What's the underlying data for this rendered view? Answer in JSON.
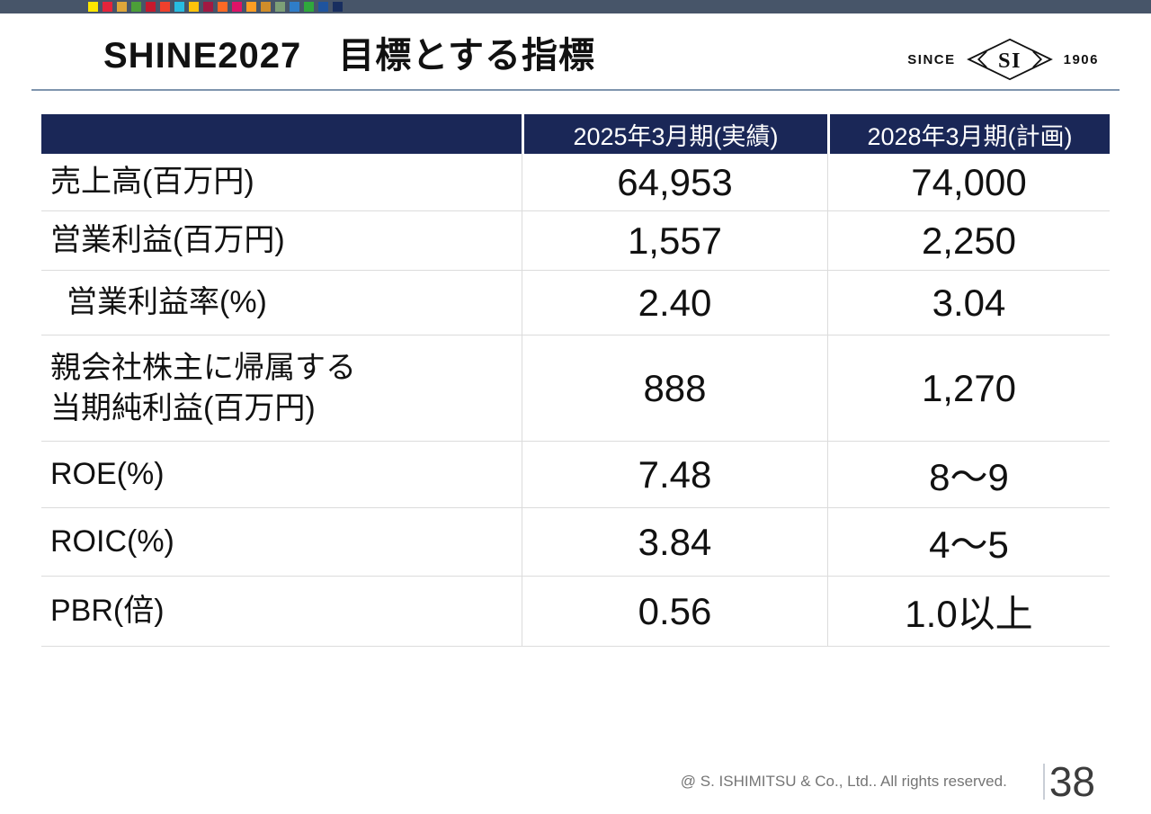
{
  "slide": {
    "title": "SHINE2027　目標とする指標",
    "copyright": "@ S. ISHIMITSU & Co., Ltd.. All rights reserved.",
    "page_number": "38"
  },
  "logo": {
    "since": "SINCE",
    "monogram": "SI",
    "year": "1906"
  },
  "topbar": {
    "bg": "#475569",
    "squares": [
      "#ffe700",
      "#e5243b",
      "#dda63a",
      "#4c9f38",
      "#c5192d",
      "#ef402d",
      "#27bde2",
      "#fcc30b",
      "#a21942",
      "#fd6925",
      "#dd1367",
      "#fd9d24",
      "#cf8d2a",
      "#7d9f77",
      "#2f7dc8",
      "#2fa83c",
      "#1f549e",
      "#182e5f"
    ]
  },
  "colors": {
    "header_bg": "#1a2757",
    "title_rule": "#7f95ae",
    "row_border": "#dcdcdc",
    "footer_text": "#757575"
  },
  "table": {
    "header": {
      "col1": "",
      "col2": "2025年3月期(実績)",
      "col3": "2028年3月期(計画)"
    },
    "rows": [
      {
        "label": "売上高(百万円)",
        "actual": "64,953",
        "plan": "74,000"
      },
      {
        "label": "営業利益(百万円)",
        "actual": "1,557",
        "plan": "2,250"
      },
      {
        "label": "営業利益率(%)",
        "actual": "2.40",
        "plan": "3.04"
      },
      {
        "label": "親会社株主に帰属する\n当期純利益(百万円)",
        "actual": "888",
        "plan": "1,270"
      },
      {
        "label": "ROE(%)",
        "actual": "7.48",
        "plan": "8～9"
      },
      {
        "label": "ROIC(%)",
        "actual": "3.84",
        "plan": "4～5"
      },
      {
        "label": "PBR(倍)",
        "actual": "0.56",
        "plan": "1.0以上"
      }
    ]
  }
}
